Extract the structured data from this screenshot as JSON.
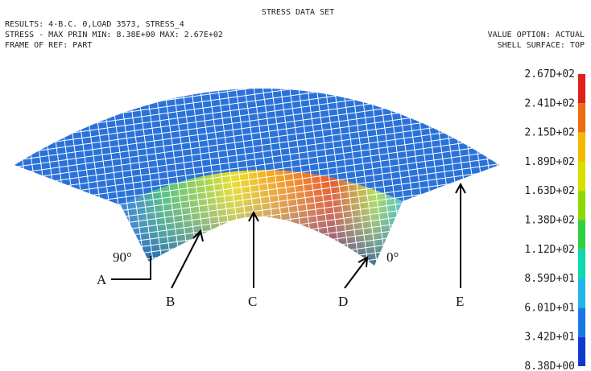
{
  "header": {
    "title": "STRESS DATA SET",
    "left_lines": [
      "RESULTS:  4-B.C. 0,LOAD 3573, STRESS_4",
      "STRESS - MAX PRIN MIN: 8.38E+00 MAX:  2.67E+02",
      "FRAME OF REF:  PART"
    ],
    "right_lines": [
      "VALUE OPTION: ACTUAL",
      "SHELL SURFACE:  TOP"
    ]
  },
  "colorbar": {
    "labels": [
      "2.67D+02",
      "2.41D+02",
      "2.15D+02",
      "1.89D+02",
      "1.63D+02",
      "1.38D+02",
      "1.12D+02",
      "8.59D+01",
      "6.01D+01",
      "3.42D+01",
      "8.38D+00"
    ],
    "colors": [
      "#e0201a",
      "#f06a10",
      "#f4b800",
      "#d8e000",
      "#8cd800",
      "#30d040",
      "#10d8b0",
      "#20b8e8",
      "#1a78e8",
      "#1038d0"
    ]
  },
  "angles": [
    "90°",
    "0°"
  ],
  "callouts": [
    "A",
    "B",
    "C",
    "D",
    "E"
  ]
}
